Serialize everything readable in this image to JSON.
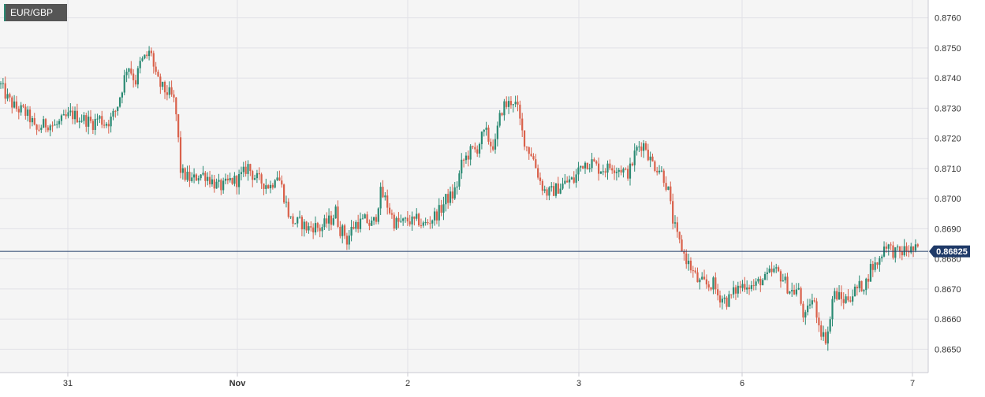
{
  "symbol_label": "EUR/GBP",
  "current_price_label": "0.86825",
  "colors": {
    "up": "#2a8a73",
    "down": "#d9604a",
    "price_line": "#1f3a68",
    "price_tag_bg": "#1f3a68",
    "grid": "#e1e1e7",
    "plot_bg": "#f5f5f5",
    "symbol_tag_bg": "#555555"
  },
  "chart_data": {
    "type": "candlestick",
    "title": "",
    "xlabel": "",
    "ylabel": "",
    "ylim": [
      0.8642,
      0.8763
    ],
    "y_ticks": [
      "0.8650",
      "0.8660",
      "0.8670",
      "0.8680",
      "0.8690",
      "0.8700",
      "0.8710",
      "0.8720",
      "0.8730",
      "0.8740",
      "0.8750",
      "0.8760"
    ],
    "x_ticks": [
      "31",
      "Nov",
      "2",
      "3",
      "6",
      "7"
    ],
    "grid": true,
    "current_price": 0.86825,
    "series": [
      {
        "close_path": [
          [
            0,
            0.8738
          ],
          [
            10,
            0.8733
          ],
          [
            20,
            0.873
          ],
          [
            30,
            0.8729
          ],
          [
            40,
            0.8726
          ],
          [
            45,
            0.8722
          ],
          [
            52,
            0.8724
          ],
          [
            60,
            0.8725
          ],
          [
            70,
            0.8724
          ],
          [
            80,
            0.8726
          ],
          [
            90,
            0.8728
          ],
          [
            100,
            0.8727
          ],
          [
            110,
            0.8726
          ],
          [
            118,
            0.8725
          ],
          [
            125,
            0.8727
          ],
          [
            132,
            0.8725
          ],
          [
            140,
            0.8726
          ],
          [
            148,
            0.873
          ],
          [
            156,
            0.8738
          ],
          [
            162,
            0.8745
          ],
          [
            168,
            0.8741
          ],
          [
            172,
            0.8739
          ],
          [
            178,
            0.8745
          ],
          [
            185,
            0.8747
          ],
          [
            192,
            0.8749
          ],
          [
            196,
            0.8741
          ],
          [
            202,
            0.8738
          ],
          [
            208,
            0.8736
          ],
          [
            214,
            0.8735
          ],
          [
            220,
            0.8733
          ],
          [
            225,
            0.8725
          ],
          [
            228,
            0.871
          ],
          [
            232,
            0.8708
          ],
          [
            238,
            0.8707
          ],
          [
            244,
            0.8706
          ],
          [
            252,
            0.8708
          ],
          [
            260,
            0.8708
          ],
          [
            268,
            0.8706
          ],
          [
            276,
            0.8704
          ],
          [
            284,
            0.8704
          ],
          [
            292,
            0.8706
          ],
          [
            300,
            0.8706
          ],
          [
            308,
            0.8708
          ],
          [
            314,
            0.8711
          ],
          [
            320,
            0.8708
          ],
          [
            328,
            0.8706
          ],
          [
            336,
            0.8705
          ],
          [
            344,
            0.8704
          ],
          [
            350,
            0.8709
          ],
          [
            356,
            0.8705
          ],
          [
            362,
            0.8699
          ],
          [
            368,
            0.8693
          ],
          [
            375,
            0.8692
          ],
          [
            382,
            0.8692
          ],
          [
            390,
            0.869
          ],
          [
            398,
            0.8691
          ],
          [
            406,
            0.869
          ],
          [
            414,
            0.8692
          ],
          [
            420,
            0.8693
          ],
          [
            426,
            0.8696
          ],
          [
            430,
            0.869
          ],
          [
            436,
            0.8689
          ],
          [
            440,
            0.8686
          ],
          [
            446,
            0.869
          ],
          [
            452,
            0.8692
          ],
          [
            458,
            0.8692
          ],
          [
            464,
            0.8693
          ],
          [
            470,
            0.8691
          ],
          [
            476,
            0.8693
          ],
          [
            482,
            0.8702
          ],
          [
            488,
            0.87
          ],
          [
            494,
            0.8696
          ],
          [
            500,
            0.8692
          ],
          [
            506,
            0.8692
          ],
          [
            512,
            0.8692
          ],
          [
            518,
            0.8693
          ],
          [
            524,
            0.8692
          ],
          [
            530,
            0.8693
          ],
          [
            536,
            0.8691
          ],
          [
            542,
            0.8692
          ],
          [
            550,
            0.8694
          ],
          [
            558,
            0.8696
          ],
          [
            566,
            0.87
          ],
          [
            574,
            0.8701
          ],
          [
            580,
            0.8705
          ],
          [
            586,
            0.8712
          ],
          [
            592,
            0.8714
          ],
          [
            598,
            0.8716
          ],
          [
            604,
            0.8716
          ],
          [
            610,
            0.872
          ],
          [
            616,
            0.8722
          ],
          [
            622,
            0.8718
          ],
          [
            628,
            0.8718
          ],
          [
            632,
            0.8725
          ],
          [
            638,
            0.8731
          ],
          [
            644,
            0.8731
          ],
          [
            650,
            0.8733
          ],
          [
            656,
            0.873
          ],
          [
            662,
            0.8722
          ],
          [
            668,
            0.8717
          ],
          [
            674,
            0.8715
          ],
          [
            680,
            0.871
          ],
          [
            686,
            0.8705
          ],
          [
            692,
            0.8702
          ],
          [
            698,
            0.8702
          ],
          [
            704,
            0.8703
          ],
          [
            710,
            0.8704
          ],
          [
            716,
            0.8705
          ],
          [
            722,
            0.8706
          ],
          [
            728,
            0.8706
          ],
          [
            734,
            0.871
          ],
          [
            740,
            0.8712
          ],
          [
            746,
            0.8712
          ],
          [
            752,
            0.8712
          ],
          [
            758,
            0.871
          ],
          [
            764,
            0.871
          ],
          [
            770,
            0.871
          ],
          [
            776,
            0.8711
          ],
          [
            782,
            0.871
          ],
          [
            788,
            0.871
          ],
          [
            794,
            0.8708
          ],
          [
            800,
            0.871
          ],
          [
            806,
            0.8716
          ],
          [
            812,
            0.8718
          ],
          [
            818,
            0.8718
          ],
          [
            824,
            0.8713
          ],
          [
            830,
            0.8711
          ],
          [
            836,
            0.871
          ],
          [
            842,
            0.8707
          ],
          [
            848,
            0.8702
          ],
          [
            852,
            0.8694
          ],
          [
            856,
            0.869
          ],
          [
            860,
            0.8686
          ],
          [
            864,
            0.8684
          ],
          [
            868,
            0.8681
          ],
          [
            874,
            0.8678
          ],
          [
            880,
            0.8675
          ],
          [
            886,
            0.8672
          ],
          [
            892,
            0.8672
          ],
          [
            898,
            0.8671
          ],
          [
            904,
            0.8672
          ],
          [
            910,
            0.8668
          ],
          [
            916,
            0.8667
          ],
          [
            922,
            0.8666
          ],
          [
            928,
            0.8668
          ],
          [
            934,
            0.867
          ],
          [
            940,
            0.8671
          ],
          [
            946,
            0.8672
          ],
          [
            952,
            0.8671
          ],
          [
            958,
            0.8671
          ],
          [
            964,
            0.8673
          ],
          [
            970,
            0.8673
          ],
          [
            976,
            0.8675
          ],
          [
            982,
            0.8676
          ],
          [
            988,
            0.8675
          ],
          [
            994,
            0.8673
          ],
          [
            1000,
            0.867
          ],
          [
            1006,
            0.8669
          ],
          [
            1012,
            0.867
          ],
          [
            1018,
            0.8662
          ],
          [
            1022,
            0.866
          ],
          [
            1028,
            0.8667
          ],
          [
            1034,
            0.8664
          ],
          [
            1040,
            0.8657
          ],
          [
            1046,
            0.8653
          ],
          [
            1052,
            0.8658
          ],
          [
            1056,
            0.8668
          ],
          [
            1062,
            0.8668
          ],
          [
            1068,
            0.8666
          ],
          [
            1074,
            0.8667
          ],
          [
            1080,
            0.8668
          ],
          [
            1086,
            0.867
          ],
          [
            1092,
            0.8671
          ],
          [
            1098,
            0.8672
          ],
          [
            1104,
            0.8677
          ],
          [
            1110,
            0.8678
          ],
          [
            1116,
            0.868
          ],
          [
            1120,
            0.8684
          ],
          [
            1124,
            0.8685
          ],
          [
            1130,
            0.8683
          ],
          [
            1136,
            0.8682
          ],
          [
            1142,
            0.8682
          ],
          [
            1148,
            0.8683
          ],
          [
            1154,
            0.8683
          ],
          [
            1160,
            0.8683
          ],
          [
            1166,
            0.86825
          ]
        ]
      }
    ]
  }
}
